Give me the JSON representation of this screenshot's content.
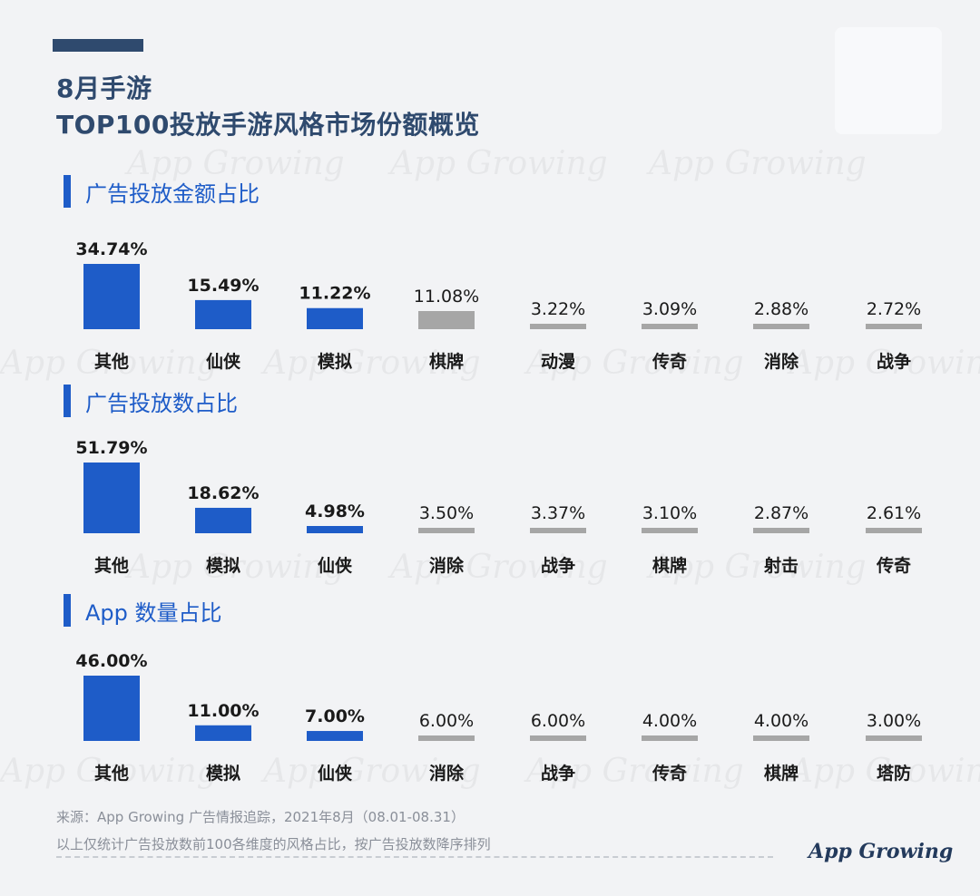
{
  "title_line1": "8月手游",
  "title_line2": "TOP100投放手游风格市场份额概览",
  "watermark_text": "App Growing",
  "logo_text": "App Growing",
  "footer_line1": "来源：App Growing 广告情报追踪，2021年8月（08.01-08.31）",
  "footer_line2": "以上仅统计广告投放数前100各维度的风格占比，按广告投放数降序排列",
  "colors": {
    "primary": "#1e5cc8",
    "secondary": "#a6a6a6",
    "title": "#2f4a6e"
  },
  "chart_data": [
    {
      "type": "bar",
      "title": "广告投放金额占比",
      "categories": [
        "其他",
        "仙侠",
        "模拟",
        "棋牌",
        "动漫",
        "传奇",
        "消除",
        "战争"
      ],
      "values": [
        34.74,
        15.49,
        11.22,
        11.08,
        3.22,
        3.09,
        2.88,
        2.72
      ],
      "value_labels": [
        "34.74%",
        "15.49%",
        "11.22%",
        "11.08%",
        "3.22%",
        "3.09%",
        "2.88%",
        "2.72%"
      ],
      "highlight_count": 3
    },
    {
      "type": "bar",
      "title": "广告投放数占比",
      "categories": [
        "其他",
        "模拟",
        "仙侠",
        "消除",
        "战争",
        "棋牌",
        "射击",
        "传奇"
      ],
      "values": [
        51.79,
        18.62,
        4.98,
        3.5,
        3.37,
        3.1,
        2.87,
        2.61
      ],
      "value_labels": [
        "51.79%",
        "18.62%",
        "4.98%",
        "3.50%",
        "3.37%",
        "3.10%",
        "2.87%",
        "2.61%"
      ],
      "highlight_count": 3
    },
    {
      "type": "bar",
      "title": "App 数量占比",
      "categories": [
        "其他",
        "模拟",
        "仙侠",
        "消除",
        "战争",
        "传奇",
        "棋牌",
        "塔防"
      ],
      "values": [
        46.0,
        11.0,
        7.0,
        6.0,
        6.0,
        4.0,
        4.0,
        3.0
      ],
      "value_labels": [
        "46.00%",
        "11.00%",
        "7.00%",
        "6.00%",
        "6.00%",
        "4.00%",
        "4.00%",
        "3.00%"
      ],
      "highlight_count": 3
    }
  ]
}
